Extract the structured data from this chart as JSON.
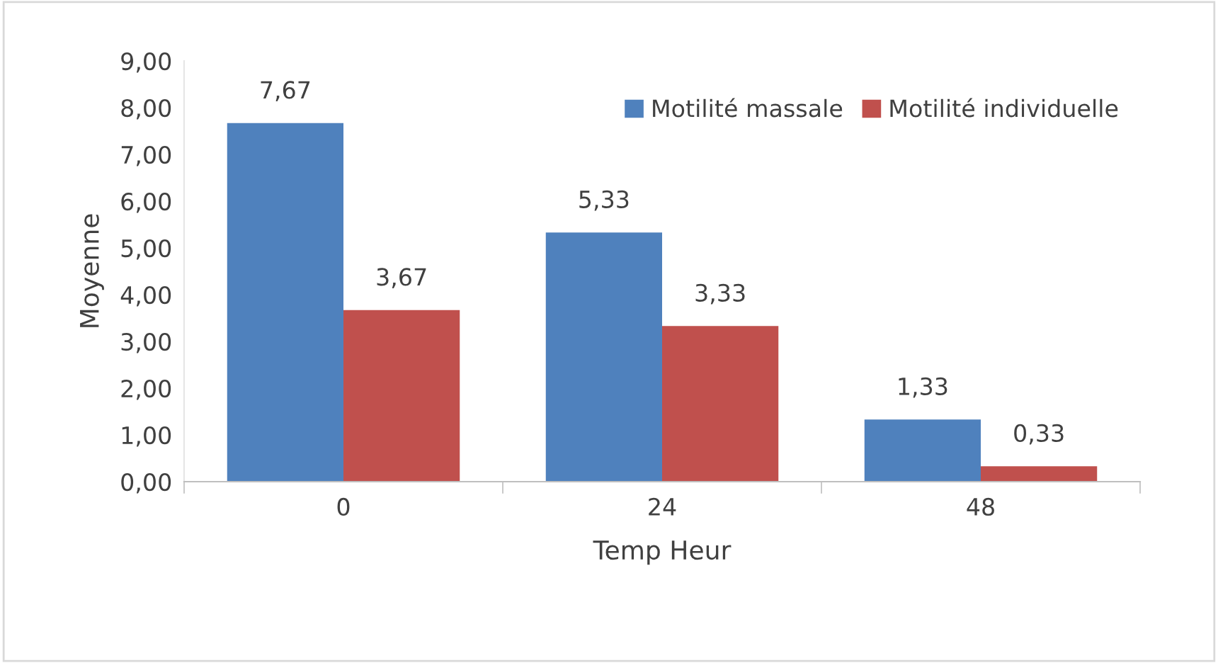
{
  "chart_data": {
    "type": "bar",
    "xlabel": "Temp Heur",
    "ylabel": "Moyenne",
    "categories": [
      "0",
      "24",
      "48"
    ],
    "series": [
      {
        "name": "Motilité massale",
        "color": "#4f81bd",
        "values": [
          7.67,
          5.33,
          1.33
        ],
        "value_labels": [
          "7,67",
          "5,33",
          "1,33"
        ]
      },
      {
        "name": "Motilité individuelle",
        "color": "#c0504d",
        "values": [
          3.67,
          3.33,
          0.33
        ],
        "value_labels": [
          "3,67",
          "3,33",
          "0,33"
        ]
      }
    ],
    "ylim": [
      0,
      9
    ],
    "yticks": [
      {
        "value": 0,
        "label": "0,00"
      },
      {
        "value": 1,
        "label": "1,00"
      },
      {
        "value": 2,
        "label": "2,00"
      },
      {
        "value": 3,
        "label": "3,00"
      },
      {
        "value": 4,
        "label": "4,00"
      },
      {
        "value": 5,
        "label": "5,00"
      },
      {
        "value": 6,
        "label": "6,00"
      },
      {
        "value": 7,
        "label": "7,00"
      },
      {
        "value": 8,
        "label": "8,00"
      },
      {
        "value": 9,
        "label": "9,00"
      }
    ],
    "grid": false,
    "legend": "top right"
  }
}
